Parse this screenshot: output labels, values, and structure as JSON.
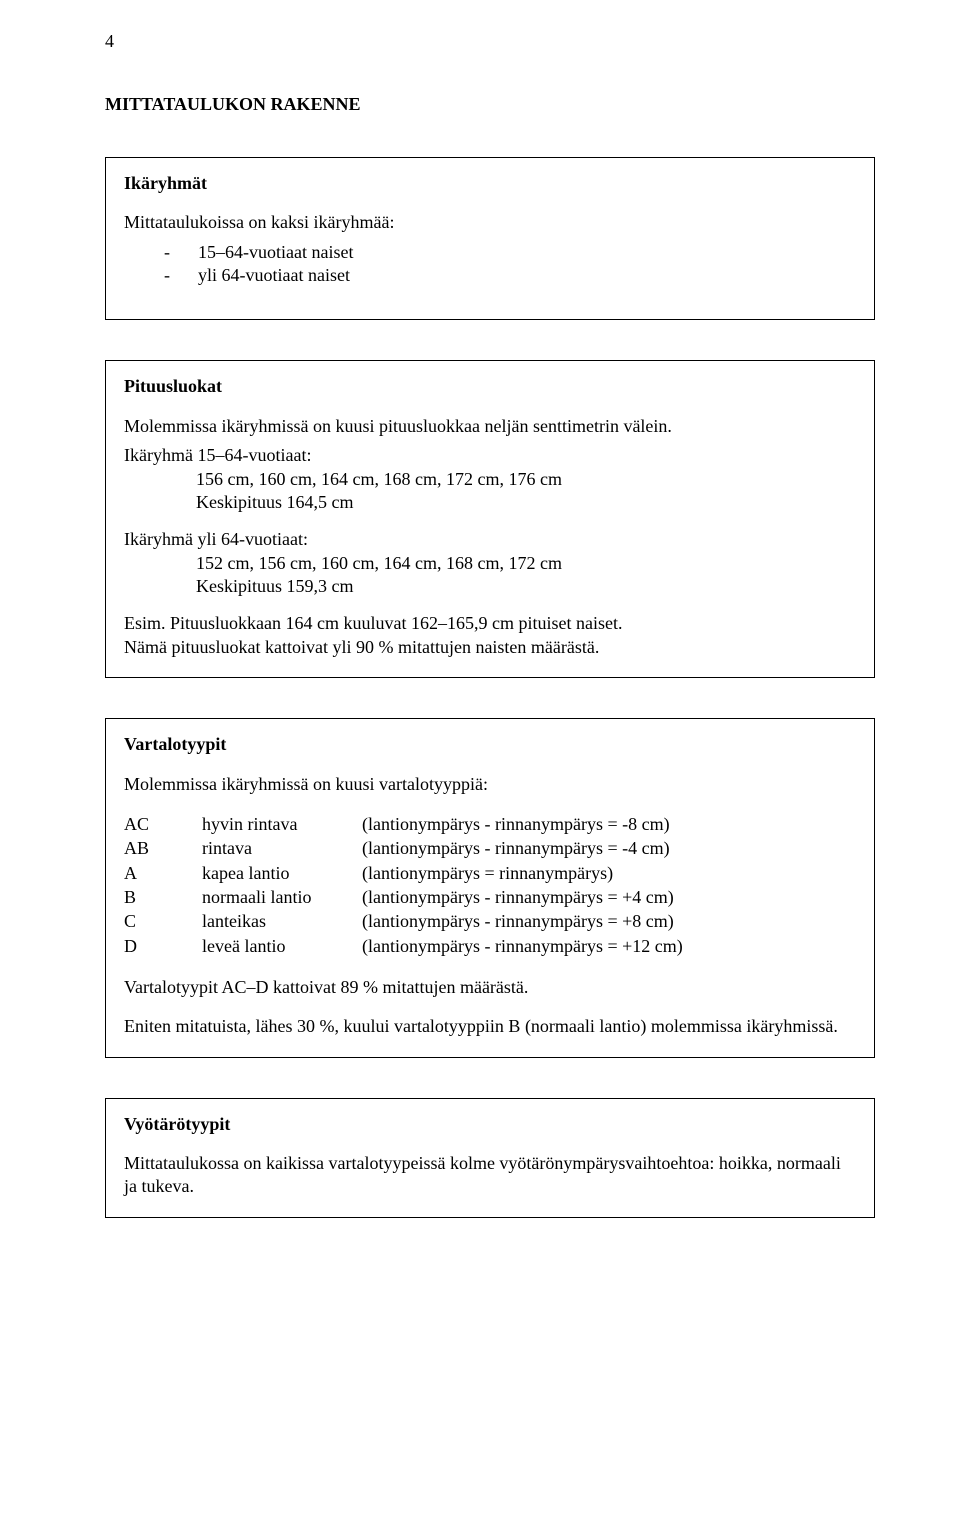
{
  "page_number": "4",
  "title": "MITTATAULUKON RAKENNE",
  "box1": {
    "heading": "Ikäryhmät",
    "intro": "Mittataulukoissa on kaksi ikäryhmää:",
    "items": [
      "15–64-vuotiaat naiset",
      "yli 64-vuotiaat naiset"
    ]
  },
  "box2": {
    "heading": "Pituusluokat",
    "intro": "Molemmissa ikäryhmissä on kuusi pituusluokkaa neljän senttimetrin välein.",
    "group1_label": "Ikäryhmä 15–64-vuotiaat:",
    "group1_values": "156 cm,  160 cm,  164 cm,  168 cm,  172 cm,  176 cm",
    "group1_avg": "Keskipituus 164,5 cm",
    "group2_label": "Ikäryhmä yli 64-vuotiaat:",
    "group2_values": "152 cm,  156 cm,  160 cm,  164 cm,  168 cm,  172 cm",
    "group2_avg": "Keskipituus 159,3 cm",
    "note1": "Esim. Pituusluokkaan 164 cm kuuluvat 162–165,9 cm pituiset naiset.",
    "note2": "Nämä pituusluokat kattoivat yli 90 % mitattujen naisten määrästä."
  },
  "box3": {
    "heading": "Vartalotyypit",
    "intro": "Molemmissa ikäryhmissä on kuusi vartalotyyppiä:",
    "types": [
      {
        "code": "AC",
        "name": "hyvin rintava",
        "desc": "(lantionympärys - rinnanympärys = -8 cm)"
      },
      {
        "code": "AB",
        "name": "rintava",
        "desc": "(lantionympärys - rinnanympärys = -4 cm)"
      },
      {
        "code": "A",
        "name": "kapea lantio",
        "desc": "(lantionympärys = rinnanympärys)"
      },
      {
        "code": "B",
        "name": "normaali lantio",
        "desc": "(lantionympärys - rinnanympärys = +4 cm)"
      },
      {
        "code": "C",
        "name": "lanteikas",
        "desc": "(lantionympärys - rinnanympärys = +8 cm)"
      },
      {
        "code": "D",
        "name": "leveä lantio",
        "desc": "(lantionympärys - rinnanympärys = +12 cm)"
      }
    ],
    "summary1": "Vartalotyypit AC–D kattoivat 89 % mitattujen määrästä.",
    "summary2": "Eniten mitatuista, lähes 30 %, kuului vartalotyyppiin B (normaali lantio) molemmissa ikäryhmissä."
  },
  "box4": {
    "heading": "Vyötärötyypit",
    "text": "Mittataulukossa on kaikissa vartalotyypeissä kolme vyötärönympärysvaihtoehtoa: hoikka, normaali ja tukeva."
  }
}
